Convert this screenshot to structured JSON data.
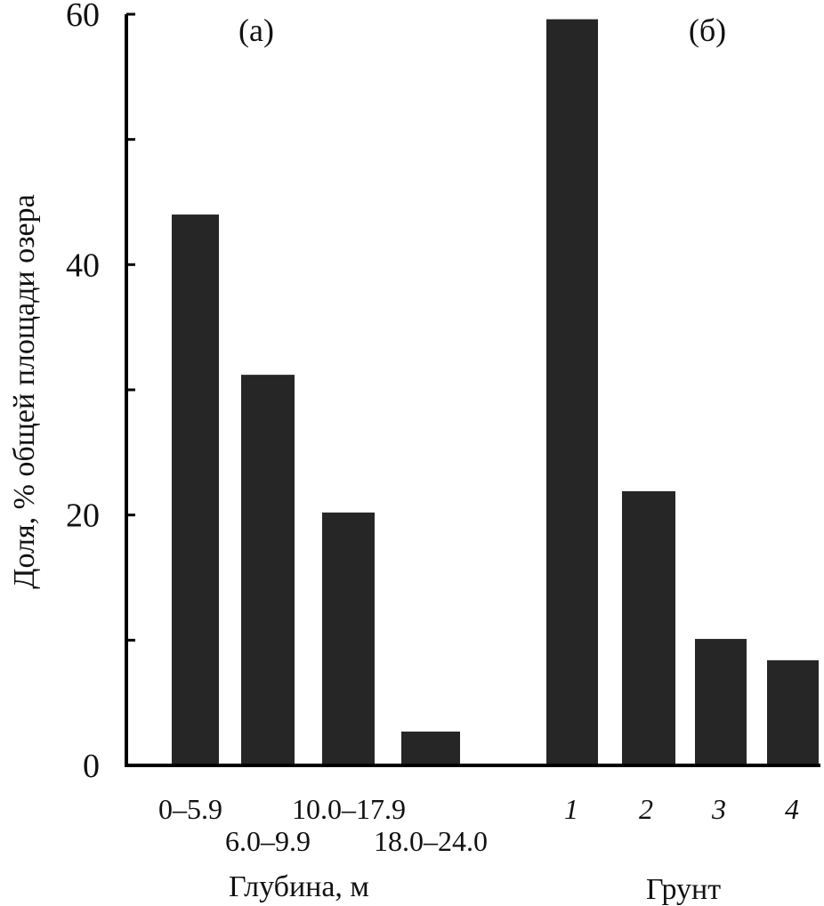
{
  "chart_data": {
    "type": "bar",
    "ylabel": "Доля, % общей площади озера",
    "ylim": [
      0,
      60
    ],
    "yticks": [
      0,
      20,
      40,
      60
    ],
    "ytick_labels": [
      "0",
      "20",
      "40",
      "60"
    ],
    "grid": false,
    "bar_color": "#262626",
    "panels": [
      {
        "panel_label": "(а)",
        "xlabel": "Глубина, м",
        "categories": [
          "0–5.9",
          "6.0–9.9",
          "10.0–17.9",
          "18.0–24.0"
        ],
        "values": [
          44,
          31.2,
          20.2,
          2.7
        ]
      },
      {
        "panel_label": "(б)",
        "xlabel": "Грунт",
        "categories": [
          "1",
          "2",
          "3",
          "4"
        ],
        "values": [
          59.6,
          21.9,
          10.1,
          8.4
        ]
      }
    ]
  }
}
